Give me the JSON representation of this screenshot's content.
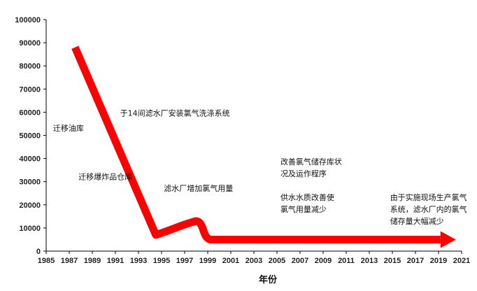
{
  "chart_data": {
    "type": "line",
    "title": "",
    "xlabel": "年份",
    "ylabel": "",
    "ylim": [
      0,
      100000
    ],
    "xlim": [
      1985,
      2021
    ],
    "y_ticks": [
      "0",
      "10000",
      "20000",
      "30000",
      "40000",
      "50000",
      "60000",
      "70000",
      "80000",
      "90000",
      "100000"
    ],
    "x_ticks": [
      "1985",
      "1987",
      "1989",
      "1991",
      "1993",
      "1995",
      "1997",
      "1999",
      "2001",
      "2003",
      "2005",
      "2007",
      "2009",
      "2011",
      "2013",
      "2015",
      "2017",
      "2019",
      "2021"
    ],
    "grid": false,
    "legend": "none",
    "series": [
      {
        "color": "#ff0000",
        "x": [
          1987.5,
          1994.5,
          1996.5,
          1998.0,
          1999.2,
          2020.5
        ],
        "y": [
          88000,
          7000,
          11500,
          13000,
          5000,
          5000
        ]
      }
    ],
    "annotations": [
      {
        "lines": [
          "迁移油库"
        ],
        "x": 1985.6,
        "y": 52000
      },
      {
        "lines": [
          "迁移爆炸品仓库"
        ],
        "x": 1987.8,
        "y": 31000
      },
      {
        "lines": [
          "于14间滤水厂安装氯气洗涤系统"
        ],
        "x": 1991.4,
        "y": 58500
      },
      {
        "lines": [
          "滤水厂增加氯气用量"
        ],
        "x": 1995.2,
        "y": 26000
      },
      {
        "lines": [
          "改善氯气储存库状",
          "况及运作程序"
        ],
        "x": 2005.3,
        "y": 37500
      },
      {
        "lines": [
          "供水水质改善使",
          "氯气用量减少"
        ],
        "x": 2005.3,
        "y": 22000
      },
      {
        "lines": [
          "由于实施现场生产氯气",
          "系统，滤水厂内的氯气",
          "储存量大幅减少"
        ],
        "x": 2014.8,
        "y": 22000
      }
    ]
  }
}
